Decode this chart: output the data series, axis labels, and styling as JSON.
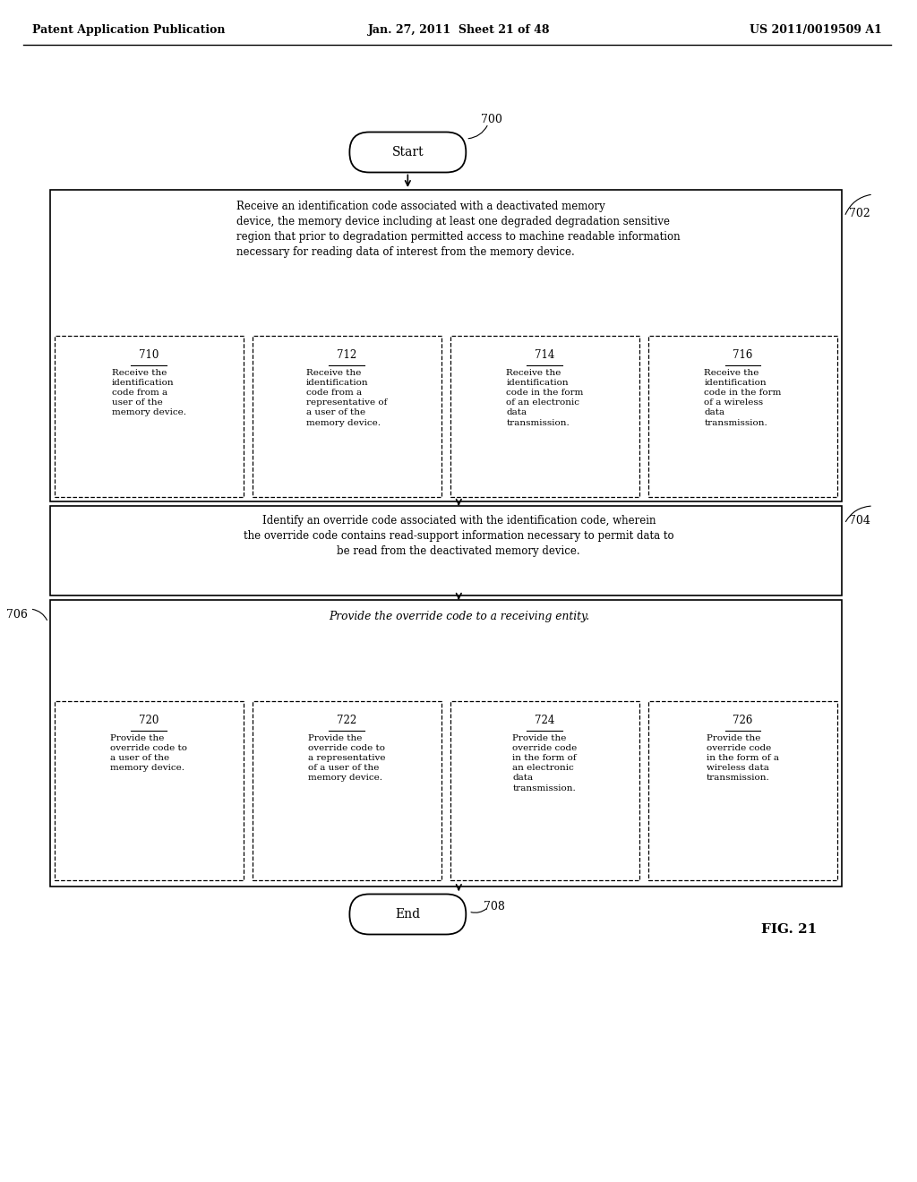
{
  "header_left": "Patent Application Publication",
  "header_center": "Jan. 27, 2011  Sheet 21 of 48",
  "header_right": "US 2011/0019509 A1",
  "fig_label": "FIG. 21",
  "start_label": "Start",
  "start_ref": "700",
  "end_label": "End",
  "end_ref": "708",
  "box702_ref": "702",
  "box702_text": "Receive an identification code associated with a deactivated memory\ndevice, the memory device including at least one degraded degradation sensitive\nregion that prior to degradation permitted access to machine readable information\nnecessary for reading data of interest from the memory device.",
  "box704_ref": "704",
  "box704_text": "Identify an override code associated with the identification code, wherein\nthe override code contains read-support information necessary to permit data to\nbe read from the deactivated memory device.",
  "box706_ref": "706",
  "box706_text": "Provide the override code to a receiving entity.",
  "sub710_ref": "710",
  "sub710_text": "Receive the\nidentification\ncode from a\nuser of the\nmemory device.",
  "sub712_ref": "712",
  "sub712_text": "Receive the\nidentification\ncode from a\nrepresentative of\na user of the\nmemory device.",
  "sub714_ref": "714",
  "sub714_text": "Receive the\nidentification\ncode in the form\nof an electronic\ndata\ntransmission.",
  "sub716_ref": "716",
  "sub716_text": "Receive the\nidentification\ncode in the form\nof a wireless\ndata\ntransmission.",
  "sub720_ref": "720",
  "sub720_text": "Provide the\noverride code to\na user of the\nmemory device.",
  "sub722_ref": "722",
  "sub722_text": "Provide the\noverride code to\na representative\nof a user of the\nmemory device.",
  "sub724_ref": "724",
  "sub724_text": "Provide the\noverride code\nin the form of\nan electronic\ndata\ntransmission.",
  "sub726_ref": "726",
  "sub726_text": "Provide the\noverride code\nin the form of a\nwireless data\ntransmission.",
  "bg_color": "#ffffff",
  "box_color": "#000000",
  "text_color": "#000000"
}
